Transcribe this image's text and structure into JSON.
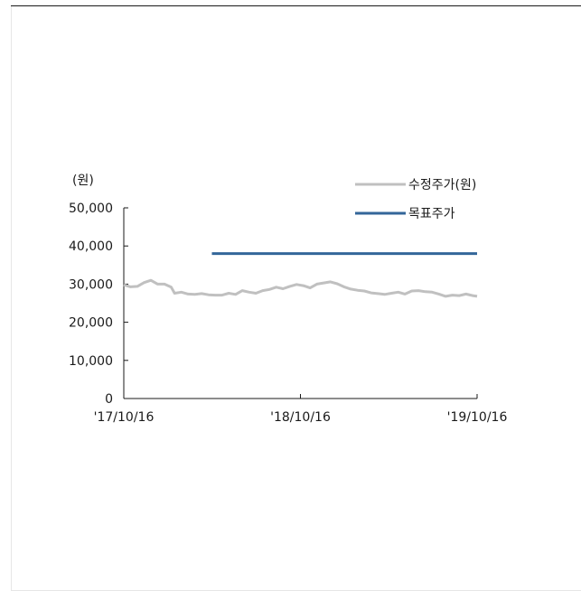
{
  "chart_data": {
    "type": "line",
    "unit_label": "(원)",
    "ylim": [
      0,
      50000
    ],
    "y_ticks": [
      {
        "value": 50000,
        "label": "50,000"
      },
      {
        "value": 40000,
        "label": "40,000"
      },
      {
        "value": 30000,
        "label": "30,000"
      },
      {
        "value": 20000,
        "label": "20,000"
      },
      {
        "value": 10000,
        "label": "10,000"
      },
      {
        "value": 0,
        "label": "0"
      }
    ],
    "x_range": [
      "2017-10-16",
      "2019-10-16"
    ],
    "x_ticks": [
      {
        "date": "2017-10-16",
        "label": "'17/10/16"
      },
      {
        "date": "2018-10-16",
        "label": "'18/10/16"
      },
      {
        "date": "2019-10-16",
        "label": "'19/10/16"
      }
    ],
    "legend_position": "top-right",
    "grid": false,
    "series": [
      {
        "name": "수정주가(원)",
        "color": "#c0c0c0",
        "points": [
          [
            "2017-10-16",
            29800
          ],
          [
            "2017-10-30",
            29300
          ],
          [
            "2017-11-13",
            29400
          ],
          [
            "2017-11-27",
            30400
          ],
          [
            "2017-12-11",
            31000
          ],
          [
            "2017-12-25",
            30000
          ],
          [
            "2018-01-08",
            30000
          ],
          [
            "2018-01-22",
            29200
          ],
          [
            "2018-01-29",
            27600
          ],
          [
            "2018-02-12",
            27900
          ],
          [
            "2018-02-26",
            27400
          ],
          [
            "2018-03-12",
            27300
          ],
          [
            "2018-03-26",
            27500
          ],
          [
            "2018-04-09",
            27200
          ],
          [
            "2018-04-23",
            27100
          ],
          [
            "2018-05-07",
            27100
          ],
          [
            "2018-05-21",
            27600
          ],
          [
            "2018-06-04",
            27300
          ],
          [
            "2018-06-18",
            28300
          ],
          [
            "2018-07-02",
            27900
          ],
          [
            "2018-07-16",
            27600
          ],
          [
            "2018-07-30",
            28300
          ],
          [
            "2018-08-13",
            28600
          ],
          [
            "2018-08-27",
            29200
          ],
          [
            "2018-09-10",
            28800
          ],
          [
            "2018-09-24",
            29400
          ],
          [
            "2018-10-08",
            29900
          ],
          [
            "2018-10-22",
            29600
          ],
          [
            "2018-11-05",
            29000
          ],
          [
            "2018-11-19",
            30000
          ],
          [
            "2018-12-03",
            30300
          ],
          [
            "2018-12-17",
            30600
          ],
          [
            "2018-12-31",
            30100
          ],
          [
            "2019-01-14",
            29300
          ],
          [
            "2019-01-28",
            28700
          ],
          [
            "2019-02-11",
            28400
          ],
          [
            "2019-02-25",
            28200
          ],
          [
            "2019-03-11",
            27700
          ],
          [
            "2019-03-25",
            27500
          ],
          [
            "2019-04-08",
            27300
          ],
          [
            "2019-04-22",
            27600
          ],
          [
            "2019-05-06",
            27900
          ],
          [
            "2019-05-20",
            27400
          ],
          [
            "2019-06-03",
            28200
          ],
          [
            "2019-06-17",
            28300
          ],
          [
            "2019-07-01",
            28000
          ],
          [
            "2019-07-15",
            27900
          ],
          [
            "2019-07-29",
            27400
          ],
          [
            "2019-08-12",
            26800
          ],
          [
            "2019-08-26",
            27100
          ],
          [
            "2019-09-09",
            27000
          ],
          [
            "2019-09-23",
            27400
          ],
          [
            "2019-10-07",
            27000
          ],
          [
            "2019-10-16",
            26800
          ]
        ]
      },
      {
        "name": "목표주가",
        "color": "#336699",
        "points": [
          [
            "2018-04-16",
            38000
          ],
          [
            "2019-10-16",
            38000
          ]
        ]
      }
    ]
  }
}
